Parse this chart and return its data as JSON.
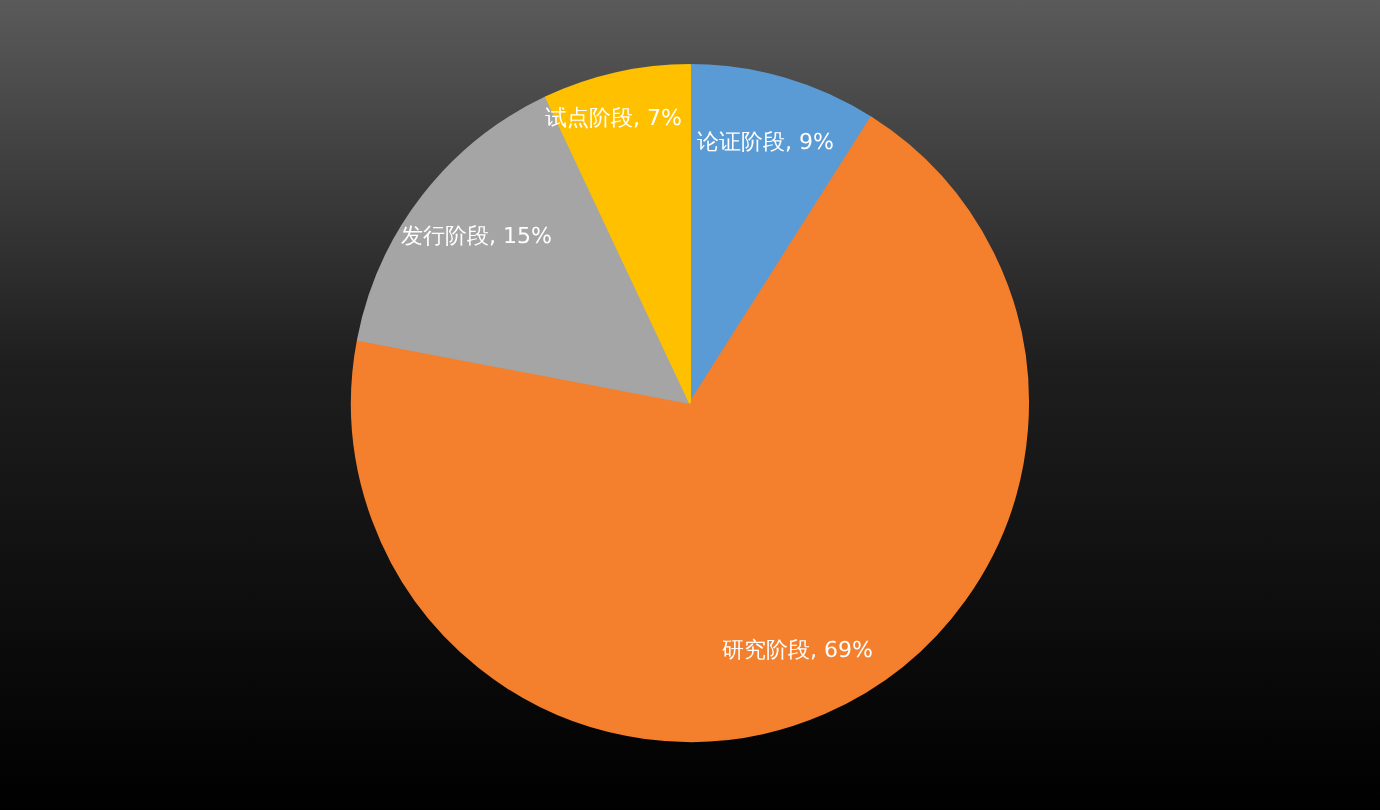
{
  "chart_data": {
    "type": "pie",
    "categories": [
      "论证阶段",
      "研究阶段",
      "发行阶段",
      "试点阶段"
    ],
    "values": [
      9,
      69,
      15,
      7
    ],
    "colors": [
      "#5b9bd5",
      "#f47f2c",
      "#a5a5a5",
      "#ffc000"
    ],
    "value_labels": [
      "9%",
      "69%",
      "15%",
      "7%"
    ],
    "legend": false
  }
}
